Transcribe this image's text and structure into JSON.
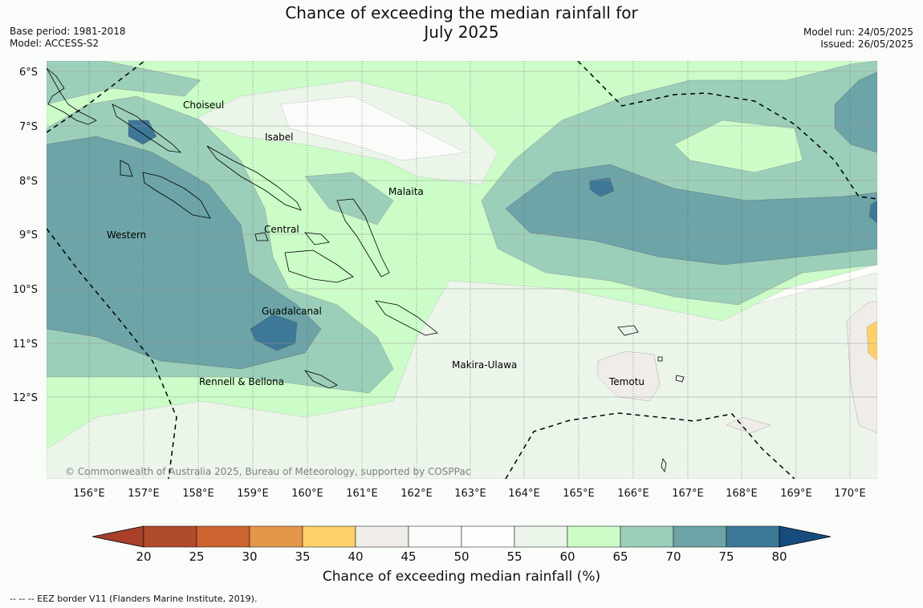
{
  "title_line1": "Chance of exceeding the median rainfall for",
  "title_line2": "July 2025",
  "base_period": "Base period: 1981-2018",
  "model": "Model: ACCESS-S2",
  "model_run": "Model run: 24/05/2025",
  "issued": "Issued: 26/05/2025",
  "copyright": "© Commonwealth of Australia 2025, Bureau of Meteorology, supported by COSPPac",
  "colorbar_label": "Chance of exceeding median rainfall (%)",
  "footnote": "-- -- -- EEZ border V11 (Flanders Marine Institute, 2019).",
  "lat_ticks": [
    "6°S",
    "7°S",
    "8°S",
    "9°S",
    "10°S",
    "11°S",
    "12°S"
  ],
  "lon_ticks": [
    "156°E",
    "157°E",
    "158°E",
    "159°E",
    "160°E",
    "161°E",
    "162°E",
    "163°E",
    "164°E",
    "165°E",
    "166°E",
    "167°E",
    "168°E",
    "169°E",
    "170°E"
  ],
  "regions": [
    "Choiseul",
    "Isabel",
    "Malaita",
    "Western",
    "Central",
    "Guadalcanal",
    "Makira-Ulawa",
    "Temotu",
    "Rennell & Bellona"
  ],
  "colorbar_ticks": [
    "20",
    "25",
    "30",
    "35",
    "40",
    "45",
    "50",
    "55",
    "60",
    "65",
    "70",
    "75",
    "80"
  ],
  "colorbar_colors": [
    "#a8402a",
    "#b04c2a",
    "#cc6432",
    "#e4964a",
    "#fdd06a",
    "#f0ece7",
    "#fbfcfa",
    "#fdfefd",
    "#ebf5ea",
    "#ccfcc8",
    "#9ccfba",
    "#6ca4a8",
    "#3e7898",
    "#164c7e"
  ],
  "map_colors": {
    "bg": "#fdfdfc",
    "p55_60": "#ebf5ea",
    "p60_65": "#ccfcc8",
    "p65_70": "#9ccfba",
    "p70_75": "#6ca4a8",
    "p75_80": "#3e7898",
    "p40_45": "#f0ece7",
    "p35_40": "#fdd06a"
  }
}
